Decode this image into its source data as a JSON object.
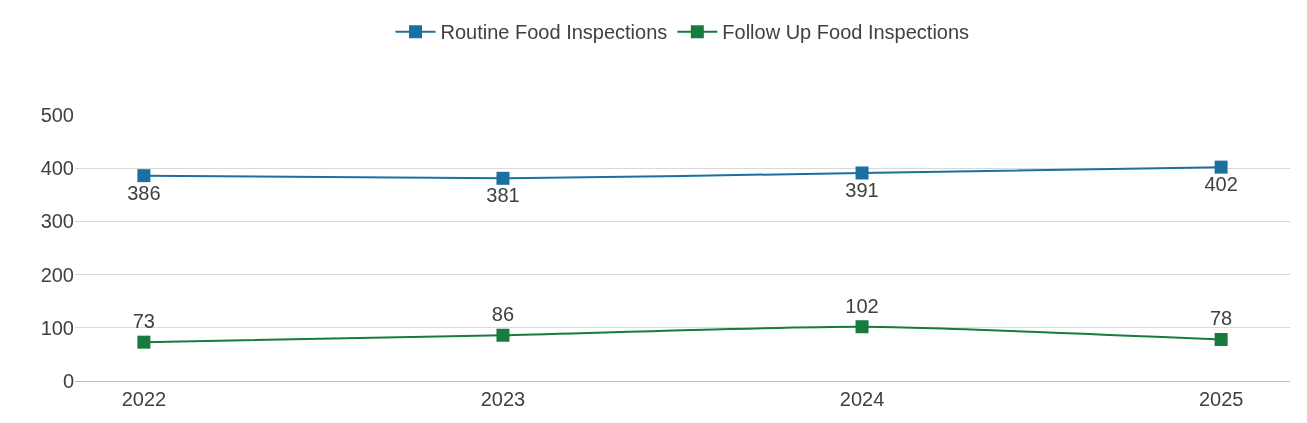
{
  "chart_data": {
    "type": "line",
    "categories": [
      "2022",
      "2023",
      "2024",
      "2025"
    ],
    "series": [
      {
        "name": "Routine Food Inspections",
        "color": "#1b6fa1",
        "values": [
          386,
          381,
          391,
          402
        ]
      },
      {
        "name": "Follow Up Food Inspections",
        "color": "#177a3e",
        "values": [
          73,
          86,
          102,
          78
        ]
      }
    ],
    "ylim": [
      0,
      500
    ],
    "yticks": [
      0,
      100,
      200,
      300,
      400,
      500
    ],
    "grid": "y",
    "legend": "top",
    "marker": "square",
    "line_style": "solid",
    "data_labels": true
  }
}
